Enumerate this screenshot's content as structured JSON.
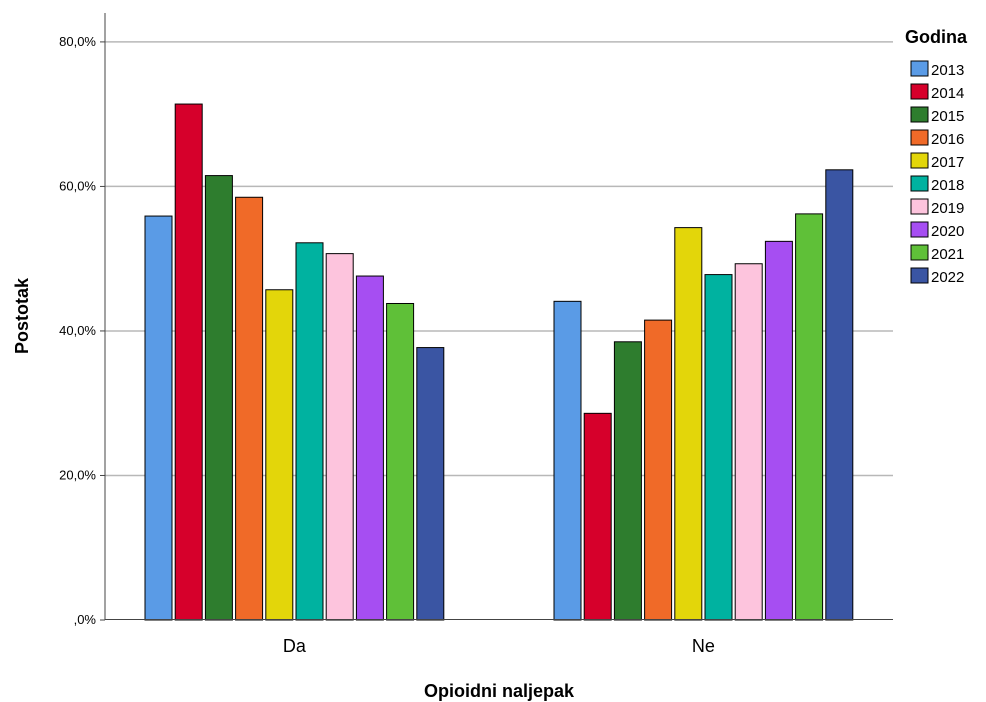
{
  "chart_data": {
    "type": "bar",
    "title": "",
    "xlabel": "Opioidni naljepak",
    "ylabel": "Postotak",
    "categories": [
      "Da",
      "Ne"
    ],
    "ylim": [
      0,
      84
    ],
    "yticks": [
      {
        "value": 0,
        "label": ",0%"
      },
      {
        "value": 20,
        "label": "20,0%"
      },
      {
        "value": 40,
        "label": "40,0%"
      },
      {
        "value": 60,
        "label": "60,0%"
      },
      {
        "value": 80,
        "label": "80,0%"
      }
    ],
    "grid": true,
    "legend": {
      "title": "Godina",
      "position": "right"
    },
    "series": [
      {
        "name": "2013",
        "color": "#5a9be6",
        "values": [
          55.9,
          44.1
        ]
      },
      {
        "name": "2014",
        "color": "#d6002b",
        "values": [
          71.4,
          28.6
        ]
      },
      {
        "name": "2015",
        "color": "#2e7d2e",
        "values": [
          61.5,
          38.5
        ]
      },
      {
        "name": "2016",
        "color": "#f06a28",
        "values": [
          58.5,
          41.5
        ]
      },
      {
        "name": "2017",
        "color": "#e3d60a",
        "values": [
          45.7,
          54.3
        ]
      },
      {
        "name": "2018",
        "color": "#00b2a0",
        "values": [
          52.2,
          47.8
        ]
      },
      {
        "name": "2019",
        "color": "#fdc4dd",
        "values": [
          50.7,
          49.3
        ]
      },
      {
        "name": "2020",
        "color": "#a64ef2",
        "values": [
          47.6,
          52.4
        ]
      },
      {
        "name": "2021",
        "color": "#5fc038",
        "values": [
          43.8,
          56.2
        ]
      },
      {
        "name": "2022",
        "color": "#3a55a3",
        "values": [
          37.7,
          62.3
        ]
      }
    ]
  }
}
